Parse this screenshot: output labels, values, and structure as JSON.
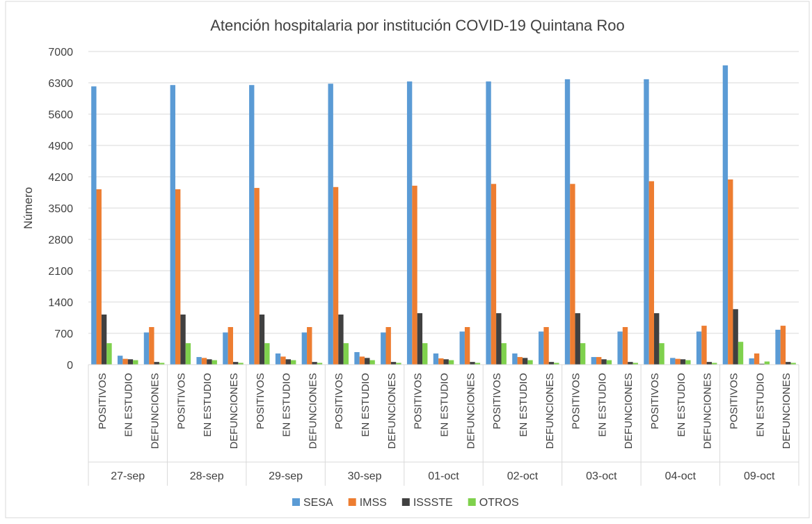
{
  "chart_data": {
    "type": "bar",
    "title": "Atención hospitalaria por institución COVID-19 Quintana Roo",
    "y_label": "Número",
    "categories": [
      "POSITIVOS",
      "EN ESTUDIO",
      "DEFUNCIONES",
      "POSITIVOS",
      "EN ESTUDIO",
      "DEFUNCIONES",
      "POSITIVOS",
      "EN ESTUDIO",
      "DEFUNCIONES",
      "POSITIVOS",
      "EN ESTUDIO",
      "DEFUNCIONES",
      "POSITIVOS",
      "EN ESTUDIO",
      "DEFUNCIONES",
      "POSITIVOS",
      "EN ESTUDIO",
      "DEFUNCIONES",
      "POSITIVOS",
      "EN ESTUDIO",
      "DEFUNCIONES",
      "POSITIVOS",
      "EN ESTUDIO",
      "DEFUNCIONES",
      "POSITIVOS",
      "EN ESTUDIO",
      "DEFUNCIONES"
    ],
    "groups": [
      "27-sep",
      "28-sep",
      "29-sep",
      "30-sep",
      "01-oct",
      "02-oct",
      "03-oct",
      "04-oct",
      "09-oct"
    ],
    "series": [
      {
        "name": "SESA",
        "color": "#5b9bd5",
        "values": [
          6220,
          200,
          720,
          6250,
          170,
          720,
          6250,
          250,
          720,
          6280,
          280,
          720,
          6330,
          250,
          740,
          6330,
          250,
          740,
          6380,
          170,
          740,
          6380,
          150,
          740,
          6690,
          140,
          780
        ]
      },
      {
        "name": "IMSS",
        "color": "#ed7d31",
        "values": [
          3920,
          130,
          840,
          3920,
          150,
          840,
          3950,
          180,
          840,
          3970,
          180,
          840,
          4000,
          140,
          840,
          4040,
          170,
          840,
          4040,
          170,
          840,
          4100,
          130,
          870,
          4140,
          250,
          870
        ]
      },
      {
        "name": "ISSSTE",
        "color": "#404040",
        "values": [
          1120,
          120,
          60,
          1120,
          120,
          60,
          1120,
          120,
          60,
          1120,
          150,
          60,
          1150,
          120,
          60,
          1150,
          150,
          60,
          1150,
          120,
          60,
          1150,
          120,
          60,
          1240,
          20,
          60
        ]
      },
      {
        "name": "OTROS",
        "color": "#7fd14d",
        "values": [
          480,
          100,
          40,
          480,
          100,
          40,
          480,
          100,
          40,
          480,
          100,
          40,
          480,
          100,
          40,
          480,
          100,
          40,
          480,
          100,
          40,
          480,
          100,
          40,
          510,
          70,
          40
        ]
      }
    ],
    "ylim": [
      0,
      7000
    ],
    "yticks": [
      0,
      700,
      1400,
      2100,
      2800,
      3500,
      4200,
      4900,
      5600,
      6300,
      7000
    ],
    "grid": true,
    "legend": "bottom"
  }
}
